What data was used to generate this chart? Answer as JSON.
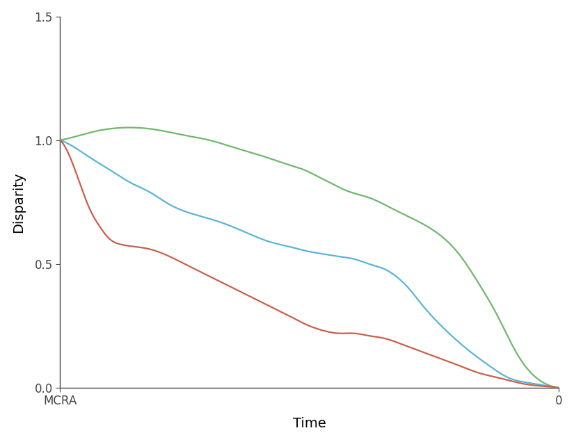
{
  "title": "",
  "xlabel": "Time",
  "ylabel": "Disparity",
  "xlim": [
    0,
    1
  ],
  "ylim": [
    0,
    1.5
  ],
  "yticks": [
    0,
    0.5,
    1.0,
    1.5
  ],
  "xtick_labels": [
    "MCRA",
    "0"
  ],
  "background_color": "#ffffff",
  "line_width": 1.6,
  "blue_color": "#5ab4d6",
  "green_color": "#6db86b",
  "red_color": "#c95f4a",
  "blue_x": [
    0.0,
    0.03,
    0.06,
    0.1,
    0.14,
    0.18,
    0.22,
    0.27,
    0.32,
    0.37,
    0.42,
    0.46,
    0.5,
    0.53,
    0.56,
    0.59,
    0.62,
    0.65,
    0.68,
    0.7,
    0.72,
    0.75,
    0.78,
    0.82,
    0.86,
    0.9,
    0.94,
    0.97,
    1.0
  ],
  "blue_y": [
    1.0,
    0.97,
    0.93,
    0.88,
    0.83,
    0.79,
    0.74,
    0.7,
    0.67,
    0.63,
    0.59,
    0.57,
    0.55,
    0.54,
    0.53,
    0.52,
    0.5,
    0.48,
    0.44,
    0.4,
    0.35,
    0.28,
    0.22,
    0.15,
    0.09,
    0.04,
    0.02,
    0.01,
    0.0
  ],
  "green_x": [
    0.0,
    0.04,
    0.08,
    0.12,
    0.16,
    0.2,
    0.25,
    0.3,
    0.35,
    0.4,
    0.43,
    0.46,
    0.49,
    0.52,
    0.55,
    0.57,
    0.6,
    0.63,
    0.66,
    0.69,
    0.72,
    0.76,
    0.8,
    0.84,
    0.88,
    0.91,
    0.94,
    0.97,
    1.0
  ],
  "green_y": [
    1.0,
    1.02,
    1.04,
    1.05,
    1.05,
    1.04,
    1.02,
    1.0,
    0.97,
    0.94,
    0.92,
    0.9,
    0.88,
    0.85,
    0.82,
    0.8,
    0.78,
    0.76,
    0.73,
    0.7,
    0.67,
    0.62,
    0.54,
    0.42,
    0.28,
    0.16,
    0.07,
    0.02,
    0.0
  ],
  "red_x": [
    0.0,
    0.03,
    0.06,
    0.08,
    0.1,
    0.12,
    0.15,
    0.18,
    0.22,
    0.26,
    0.3,
    0.34,
    0.38,
    0.42,
    0.46,
    0.5,
    0.53,
    0.56,
    0.59,
    0.62,
    0.65,
    0.68,
    0.72,
    0.76,
    0.8,
    0.84,
    0.88,
    0.92,
    0.95,
    0.98,
    1.0
  ],
  "red_y": [
    1.0,
    0.88,
    0.72,
    0.65,
    0.6,
    0.58,
    0.57,
    0.56,
    0.53,
    0.49,
    0.45,
    0.41,
    0.37,
    0.33,
    0.29,
    0.25,
    0.23,
    0.22,
    0.22,
    0.21,
    0.2,
    0.18,
    0.15,
    0.12,
    0.09,
    0.06,
    0.04,
    0.02,
    0.01,
    0.005,
    0.0
  ]
}
